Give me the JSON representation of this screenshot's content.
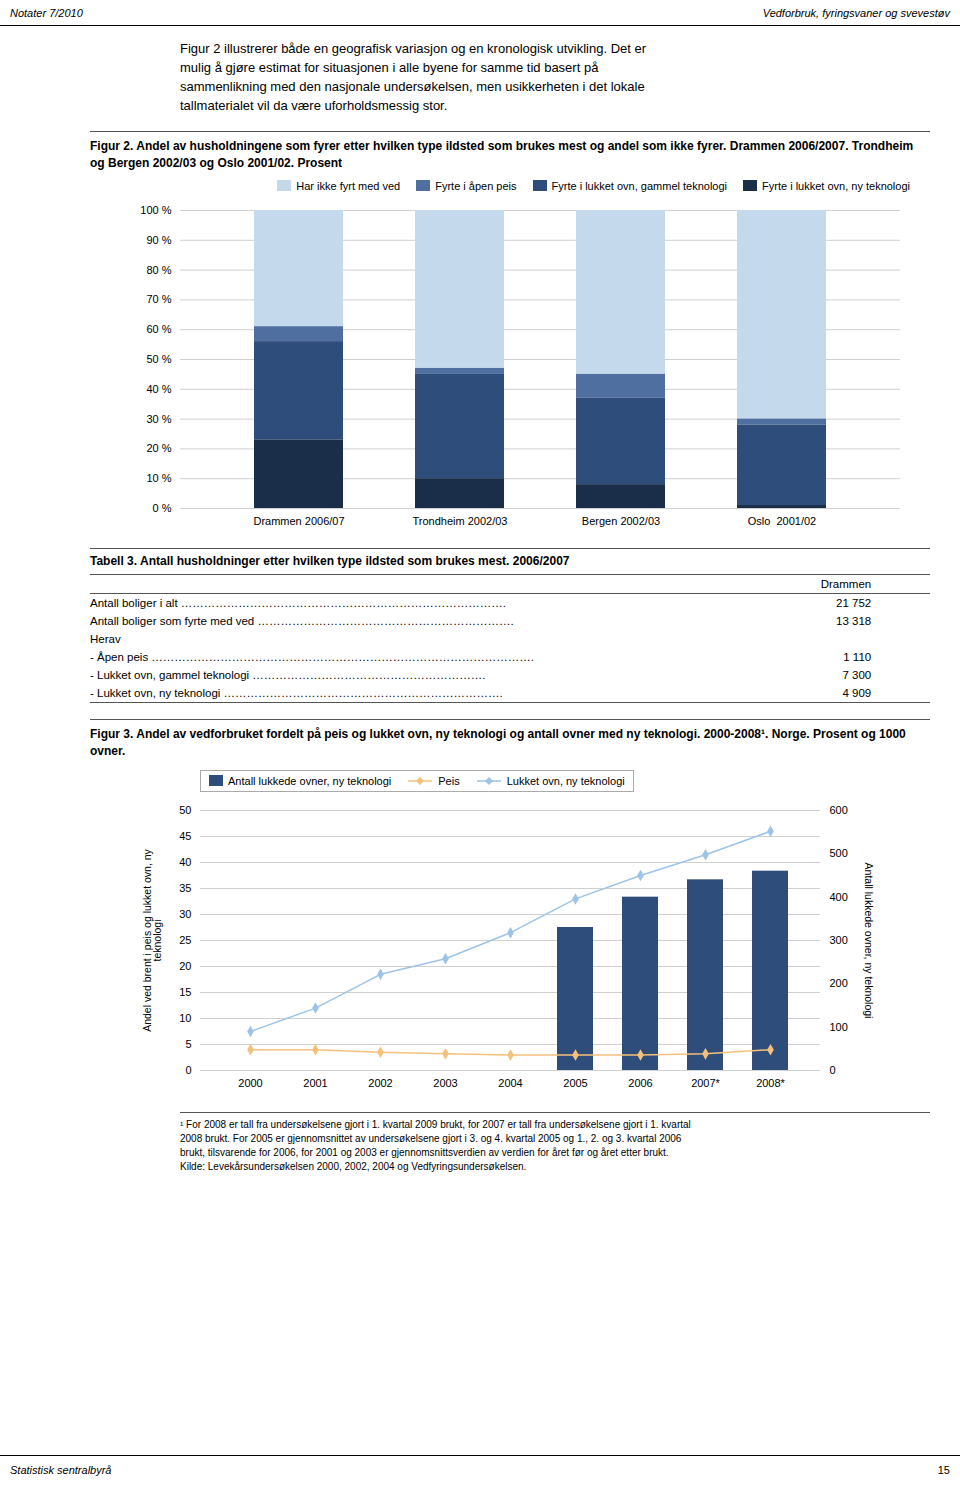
{
  "page_header": {
    "left": "Notater 7/2010",
    "right": "Vedforbruk, fyringsvaner og svevestøv"
  },
  "intro": [
    "Figur 2 illustrerer både en geografisk variasjon og en kronologisk utvikling. Det er",
    "mulig å gjøre estimat for situasjonen i alle byene for samme tid basert på",
    "sammenlikning med den nasjonale undersøkelsen, men usikkerheten i det lokale",
    "tallmaterialet vil da være uforholdsmessig stor."
  ],
  "table": {
    "title": "Tabell 3. Antall husholdninger etter hvilken type ildsted som brukes mest. 2006/2007",
    "columns": [
      "Drammen"
    ],
    "rows": [
      {
        "text": "Antall boliger i alt ………………………………………………………………………….",
        "value": "21 752"
      },
      {
        "text": "Antall boliger som fyrte med ved ………………………………………………………….",
        "value": "13 318"
      },
      {
        "text": "Herav"
      },
      {
        "text": "- Åpen peis ……………………………………………………………………………………….",
        "value": "1 110"
      },
      {
        "text": "- Lukket ovn, gammel teknologi …………………………………………………….",
        "value": "7 300"
      },
      {
        "text": "- Lukket ovn, ny teknologi ……………………………………………………………….",
        "value": "4 909"
      }
    ]
  },
  "footnote": [
    "¹ For 2008 er tall fra undersøkelsene gjort i 1. kvartal 2009 brukt, for 2007 er tall fra undersøkelsene gjort i 1. kvartal",
    "2008 brukt. For 2005 er gjennomsnittet av undersøkelsene gjort i 3. og 4. kvartal 2005 og 1., 2. og 3. kvartal 2006",
    "brukt, tilsvarende for 2006, for 2001 og 2003 er gjennomsnittsverdien av verdien for året før og året etter brukt.",
    "Kilde: Levekårsundersøkelsen 2000, 2002, 2004 og Vedfyringsundersøkelsen."
  ],
  "footer": {
    "left": "Statistisk sentralbyrå",
    "right": "15"
  },
  "chart_data": [
    {
      "type": "bar",
      "title": "Figur 2. Andel av husholdningene som fyrer etter hvilken type ildsted som brukes mest og andel som ikke fyrer. Drammen 2006/2007. Trondheim og Bergen 2002/03 og Oslo 2001/02. Prosent",
      "stacked": true,
      "categories": [
        "Drammen 2006/07",
        "Trondheim 2002/03",
        "Bergen 2002/03",
        "Oslo  2001/02"
      ],
      "series": [
        {
          "name": "Har ikke fyrt med ved",
          "color": "#c5d9ed",
          "values": [
            39,
            53,
            55,
            70
          ]
        },
        {
          "name": "Fyrte i åpen peis",
          "color": "#4f6fa0",
          "values": [
            5,
            2,
            8,
            2
          ]
        },
        {
          "name": "Fyrte i lukket ovn, gammel teknologi",
          "color": "#2e4d7b",
          "values": [
            33,
            35,
            29,
            27
          ]
        },
        {
          "name": "Fyrte i lukket ovn, ny teknologi",
          "color": "#1a2e4a",
          "values": [
            23,
            10,
            8,
            1
          ]
        }
      ],
      "ylim": [
        0,
        100
      ],
      "yticks": [
        {
          "value": 0,
          "label": "0 %"
        },
        {
          "value": 10,
          "label": "10 %"
        },
        {
          "value": 20,
          "label": "20 %"
        },
        {
          "value": 30,
          "label": "30 %"
        },
        {
          "value": 40,
          "label": "40 %"
        },
        {
          "value": 50,
          "label": "50 %"
        },
        {
          "value": 60,
          "label": "60 %"
        },
        {
          "value": 70,
          "label": "70 %"
        },
        {
          "value": 80,
          "label": "80 %"
        },
        {
          "value": 90,
          "label": "90 %"
        },
        {
          "value": 100,
          "label": "100 %"
        }
      ],
      "grid": true,
      "legend": "upper right"
    },
    {
      "type": "combo",
      "title": "Figur 3. Andel av vedforbruket fordelt på peis og lukket ovn, ny teknologi og antall ovner med ny teknologi. 2000-2008¹. Norge. Prosent og 1000 ovner.",
      "categories": [
        "2000",
        "2001",
        "2002",
        "2003",
        "2004",
        "2005",
        "2006",
        "2007*",
        "2008*"
      ],
      "series": [
        {
          "name": "Antall lukkede ovner, ny teknologi",
          "type": "bar",
          "axis": "y2",
          "color": "#2e4d7b",
          "values": [
            null,
            null,
            null,
            null,
            0,
            330,
            400,
            440,
            460
          ]
        },
        {
          "name": "Peis",
          "type": "line",
          "marker": "diamond",
          "color": "#f5c07a",
          "values": [
            4.0,
            4.0,
            3.5,
            3.2,
            3.0,
            3.0,
            3.0,
            3.2,
            4.0
          ]
        },
        {
          "name": "Lukket ovn, ny teknologi",
          "type": "line",
          "marker": "diamond",
          "color": "#9dc3e6",
          "values": [
            7.5,
            12.0,
            18.5,
            21.5,
            26.5,
            33.0,
            37.5,
            41.5,
            46.0
          ]
        }
      ],
      "ylabel": "Andel ved brent i peis og lukket ovn, ny\nteknologi",
      "y2label": "Antall lukkede ovner, ny teknologi",
      "ylim": [
        0,
        50
      ],
      "yticks": [
        0,
        5,
        10,
        15,
        20,
        25,
        30,
        35,
        40,
        45,
        50
      ],
      "y2lim": [
        0,
        600
      ],
      "y2ticks": [
        0,
        100,
        200,
        300,
        400,
        500,
        600
      ],
      "grid": true,
      "legend": "upper left"
    }
  ]
}
